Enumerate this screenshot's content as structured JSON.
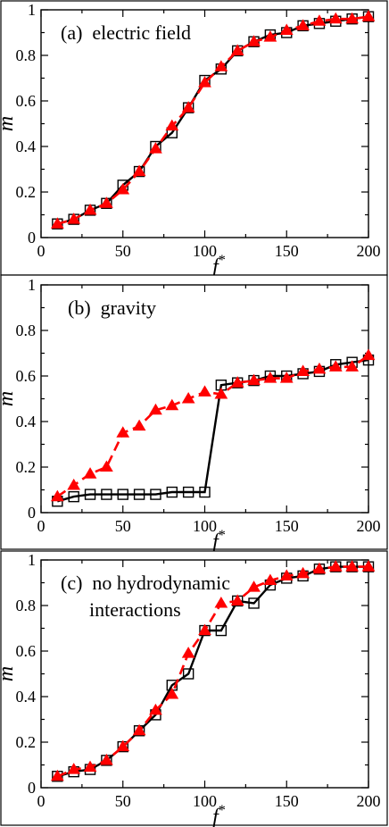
{
  "chart_data": [
    {
      "type": "line",
      "title": "(a)  electric field",
      "xlabel": "f*",
      "ylabel": "m",
      "xlim": [
        0,
        200
      ],
      "ylim": [
        0,
        1
      ],
      "xticks": [
        "0",
        "50",
        "100",
        "150",
        "200"
      ],
      "yticks": [
        "0",
        "0.2",
        "0.4",
        "0.6",
        "0.8",
        "1"
      ],
      "grid": false,
      "x": [
        10,
        20,
        30,
        40,
        50,
        60,
        70,
        80,
        90,
        100,
        110,
        120,
        130,
        140,
        150,
        160,
        170,
        180,
        190,
        200
      ],
      "series": [
        {
          "marker": "open-square",
          "line": "solid",
          "color": "#000000",
          "values": [
            0.06,
            0.08,
            0.12,
            0.15,
            0.23,
            0.29,
            0.4,
            0.46,
            0.57,
            0.69,
            0.74,
            0.82,
            0.86,
            0.89,
            0.9,
            0.93,
            0.94,
            0.95,
            0.96,
            0.97
          ]
        },
        {
          "marker": "filled-triangle",
          "line": "dashed",
          "color": "#ff0000",
          "values": [
            0.06,
            0.08,
            0.12,
            0.15,
            0.21,
            0.29,
            0.39,
            0.49,
            0.57,
            0.68,
            0.75,
            0.82,
            0.86,
            0.88,
            0.91,
            0.93,
            0.95,
            0.96,
            0.96,
            0.97
          ]
        }
      ]
    },
    {
      "type": "line",
      "title": "(b)  gravity",
      "xlabel": "f*",
      "ylabel": "m",
      "xlim": [
        0,
        200
      ],
      "ylim": [
        0,
        1
      ],
      "xticks": [
        "0",
        "50",
        "100",
        "150",
        "200"
      ],
      "yticks": [
        "0",
        "0.2",
        "0.4",
        "0.6",
        "0.8",
        "1"
      ],
      "grid": false,
      "x": [
        10,
        20,
        30,
        40,
        50,
        60,
        70,
        80,
        90,
        100,
        110,
        120,
        130,
        140,
        150,
        160,
        170,
        180,
        190,
        200
      ],
      "series": [
        {
          "marker": "open-square",
          "line": "solid",
          "color": "#000000",
          "values": [
            0.05,
            0.07,
            0.08,
            0.08,
            0.08,
            0.08,
            0.08,
            0.09,
            0.09,
            0.09,
            0.56,
            0.57,
            0.58,
            0.6,
            0.6,
            0.61,
            0.62,
            0.65,
            0.66,
            0.67
          ]
        },
        {
          "marker": "filled-triangle",
          "line": "dashed",
          "color": "#ff0000",
          "values": [
            0.07,
            0.12,
            0.17,
            0.2,
            0.35,
            0.38,
            0.45,
            0.47,
            0.5,
            0.53,
            0.52,
            0.57,
            0.58,
            0.59,
            0.59,
            0.62,
            0.63,
            0.64,
            0.64,
            0.69
          ]
        }
      ]
    },
    {
      "type": "line",
      "title": "(c)  no hydrodynamic",
      "subtitle": "interactions",
      "xlabel": "f*",
      "ylabel": "m",
      "xlim": [
        0,
        200
      ],
      "ylim": [
        0,
        1
      ],
      "xticks": [
        "0",
        "50",
        "100",
        "150",
        "200"
      ],
      "yticks": [
        "0",
        "0.2",
        "0.4",
        "0.6",
        "0.8",
        "1"
      ],
      "grid": false,
      "x": [
        10,
        20,
        30,
        40,
        50,
        60,
        70,
        80,
        90,
        100,
        110,
        120,
        130,
        140,
        150,
        160,
        170,
        180,
        190,
        200
      ],
      "series": [
        {
          "marker": "open-square",
          "line": "solid",
          "color": "#000000",
          "values": [
            0.05,
            0.07,
            0.08,
            0.12,
            0.18,
            0.25,
            0.32,
            0.45,
            0.5,
            0.69,
            0.69,
            0.82,
            0.81,
            0.89,
            0.92,
            0.93,
            0.96,
            0.97,
            0.97,
            0.97
          ]
        },
        {
          "marker": "filled-triangle",
          "line": "dashed",
          "color": "#ff0000",
          "values": [
            0.05,
            0.08,
            0.09,
            0.12,
            0.18,
            0.25,
            0.34,
            0.41,
            0.59,
            0.69,
            0.81,
            0.82,
            0.88,
            0.91,
            0.93,
            0.94,
            0.96,
            0.97,
            0.97,
            0.97
          ]
        }
      ]
    }
  ]
}
